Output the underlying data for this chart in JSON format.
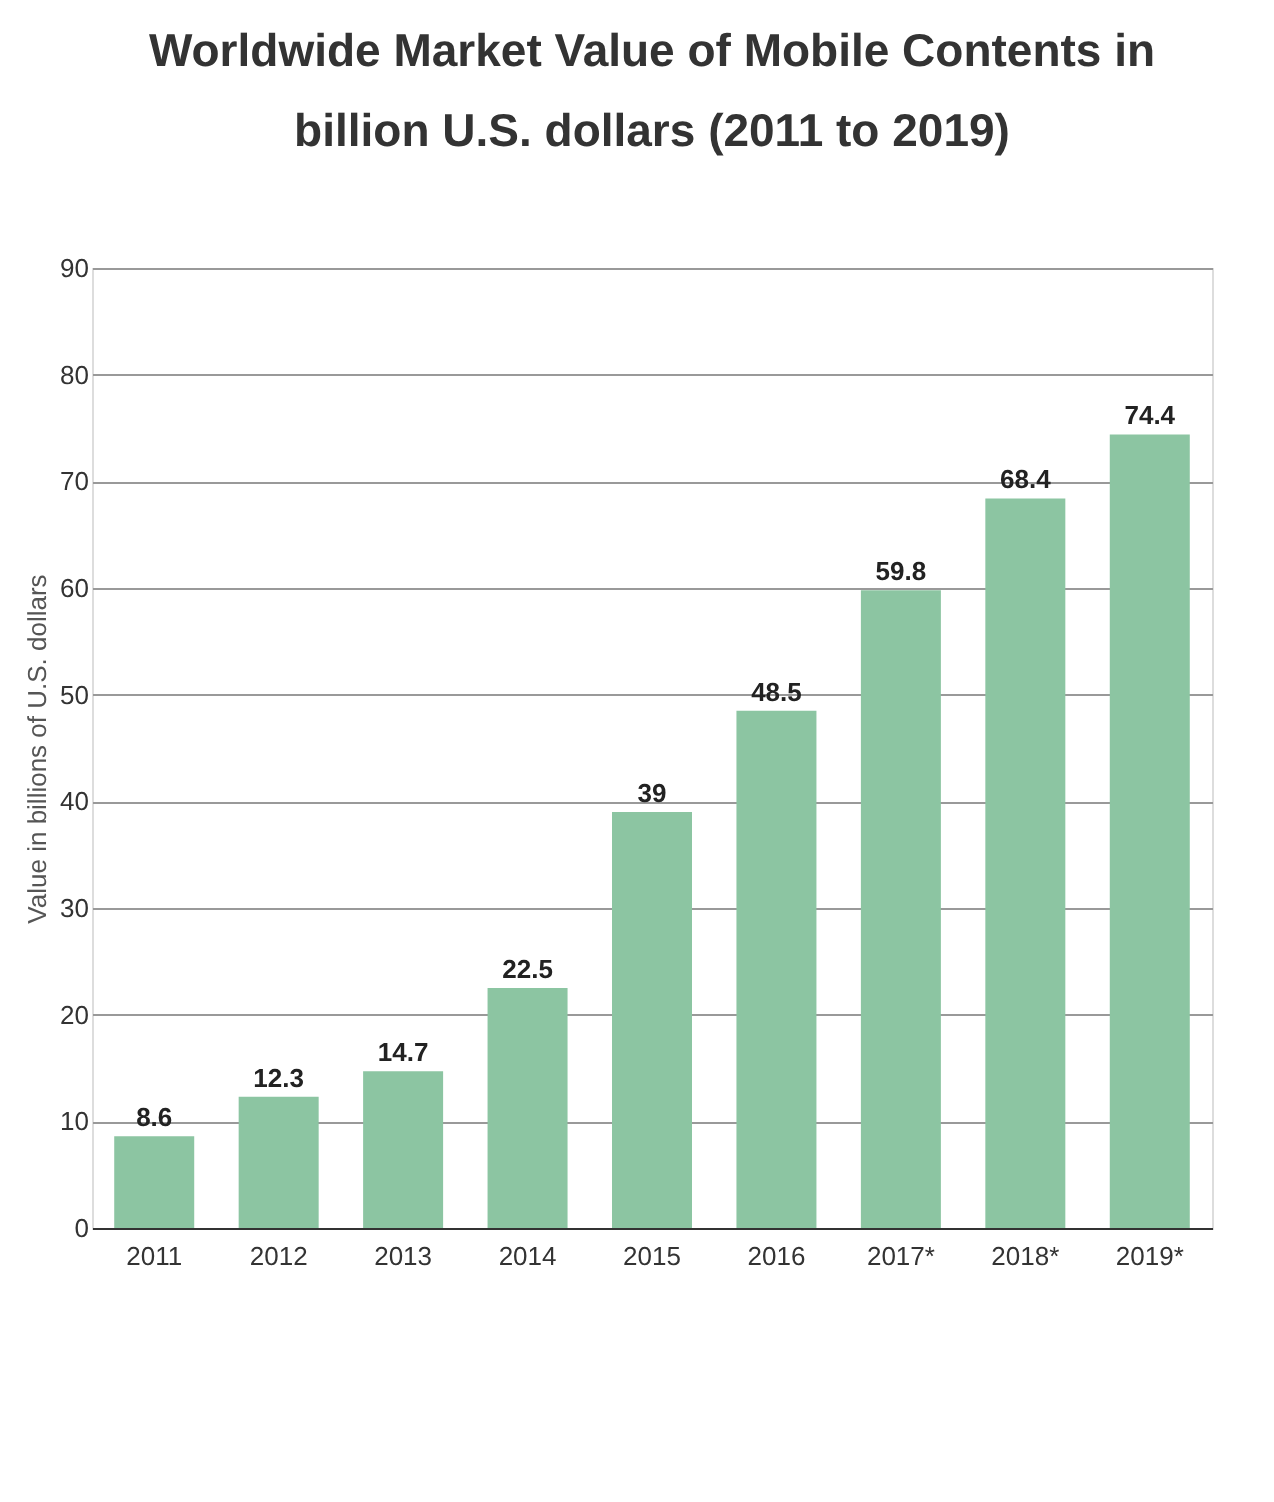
{
  "chart_data": {
    "type": "bar",
    "title": [
      "Worldwide Market Value of Mobile Contents in",
      "billion U.S. dollars (2011 to 2019)"
    ],
    "ylabel": "Value in billions of U.S. dollars",
    "categories": [
      "2011",
      "2012",
      "2013",
      "2014",
      "2015",
      "2016",
      "2017*",
      "2018*",
      "2019*"
    ],
    "values": [
      8.6,
      12.3,
      14.7,
      22.5,
      39,
      48.5,
      59.8,
      68.4,
      74.4
    ],
    "color": "#8cc5a2",
    "ylim": [
      0,
      90
    ],
    "yticks": [
      0,
      10,
      20,
      30,
      40,
      50,
      60,
      70,
      80,
      90
    ],
    "grid": "y",
    "data_labels": true
  }
}
